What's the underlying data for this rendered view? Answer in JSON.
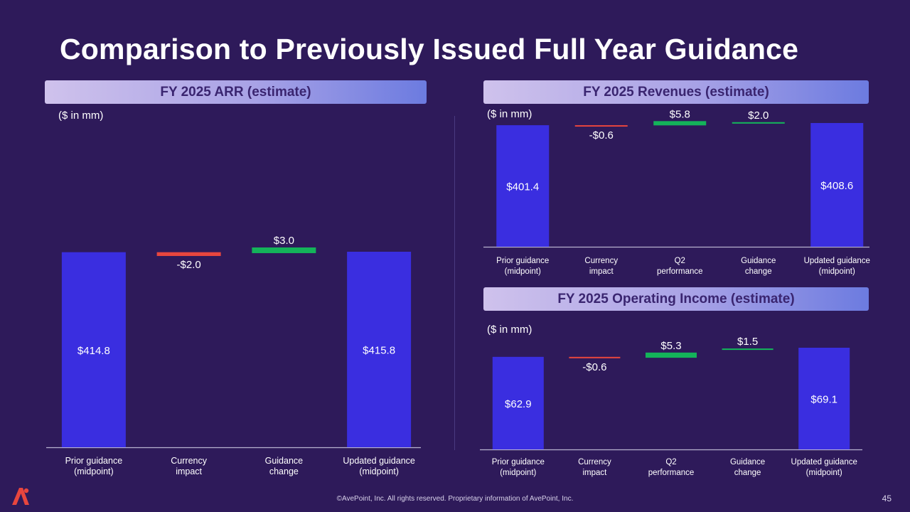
{
  "page": {
    "title": "Comparison to Previously Issued Full Year Guidance",
    "footer": "©AvePoint, Inc. All rights reserved. Proprietary information of AvePoint, Inc.",
    "page_number": "45",
    "logo_icon": "avepoint-logo-icon"
  },
  "colors": {
    "total": "#3a2ee0",
    "negative": "#e8463e",
    "positive": "#14b35a"
  },
  "chart_data": [
    {
      "id": "arr",
      "type": "bar",
      "subtype": "waterfall",
      "title": "FY 2025 ARR (estimate)",
      "unit_label": "($ in mm)",
      "categories": [
        "Prior guidance (midpoint)",
        "Currency impact",
        "Guidance change",
        "Updated guidance (midpoint)"
      ],
      "values": [
        414.8,
        -2.0,
        3.0,
        415.8
      ],
      "kinds": [
        "total",
        "delta",
        "delta",
        "total"
      ],
      "labels": [
        "$414.8",
        "-$2.0",
        "$3.0",
        "$415.8"
      ]
    },
    {
      "id": "revenues",
      "type": "bar",
      "subtype": "waterfall",
      "title": "FY 2025 Revenues (estimate)",
      "unit_label": "($ in mm)",
      "categories": [
        "Prior guidance (midpoint)",
        "Currency impact",
        "Q2 performance",
        "Guidance change",
        "Updated guidance (midpoint)"
      ],
      "values": [
        401.4,
        -0.6,
        5.8,
        2.0,
        408.6
      ],
      "kinds": [
        "total",
        "delta",
        "delta",
        "delta",
        "total"
      ],
      "labels": [
        "$401.4",
        "-$0.6",
        "$5.8",
        "$2.0",
        "$408.6"
      ]
    },
    {
      "id": "opincome",
      "type": "bar",
      "subtype": "waterfall",
      "title": "FY 2025 Operating Income (estimate)",
      "unit_label": "($ in mm)",
      "categories": [
        "Prior guidance (midpoint)",
        "Currency impact",
        "Q2 performance",
        "Guidance change",
        "Updated guidance (midpoint)"
      ],
      "values": [
        62.9,
        -0.6,
        5.3,
        1.5,
        69.1
      ],
      "kinds": [
        "total",
        "delta",
        "delta",
        "delta",
        "total"
      ],
      "labels": [
        "$62.9",
        "-$0.6",
        "$5.3",
        "$1.5",
        "$69.1"
      ]
    }
  ]
}
